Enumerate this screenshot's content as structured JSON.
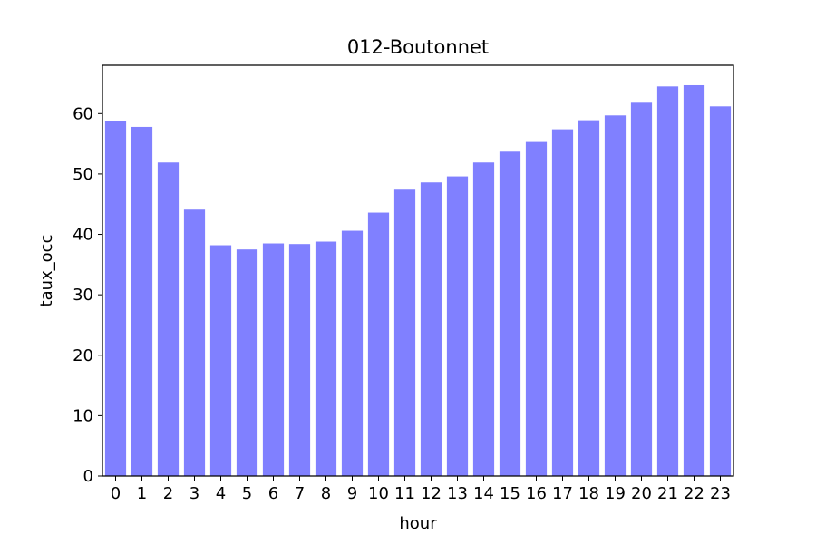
{
  "chart_data": {
    "type": "bar",
    "title": "012-Boutonnet",
    "xlabel": "hour",
    "ylabel": "taux_occ",
    "categories": [
      "0",
      "1",
      "2",
      "3",
      "4",
      "5",
      "6",
      "7",
      "8",
      "9",
      "10",
      "11",
      "12",
      "13",
      "14",
      "15",
      "16",
      "17",
      "18",
      "19",
      "20",
      "21",
      "22",
      "23"
    ],
    "values": [
      58.7,
      57.8,
      51.9,
      44.1,
      38.2,
      37.5,
      38.5,
      38.4,
      38.8,
      40.6,
      43.6,
      47.4,
      48.6,
      49.6,
      51.9,
      53.7,
      55.3,
      57.4,
      58.9,
      59.7,
      61.8,
      64.5,
      64.7,
      61.2
    ],
    "ylim": [
      0,
      68
    ],
    "yticks": [
      0,
      10,
      20,
      30,
      40,
      50,
      60
    ],
    "bar_color": "#8080ff",
    "grid": false
  }
}
